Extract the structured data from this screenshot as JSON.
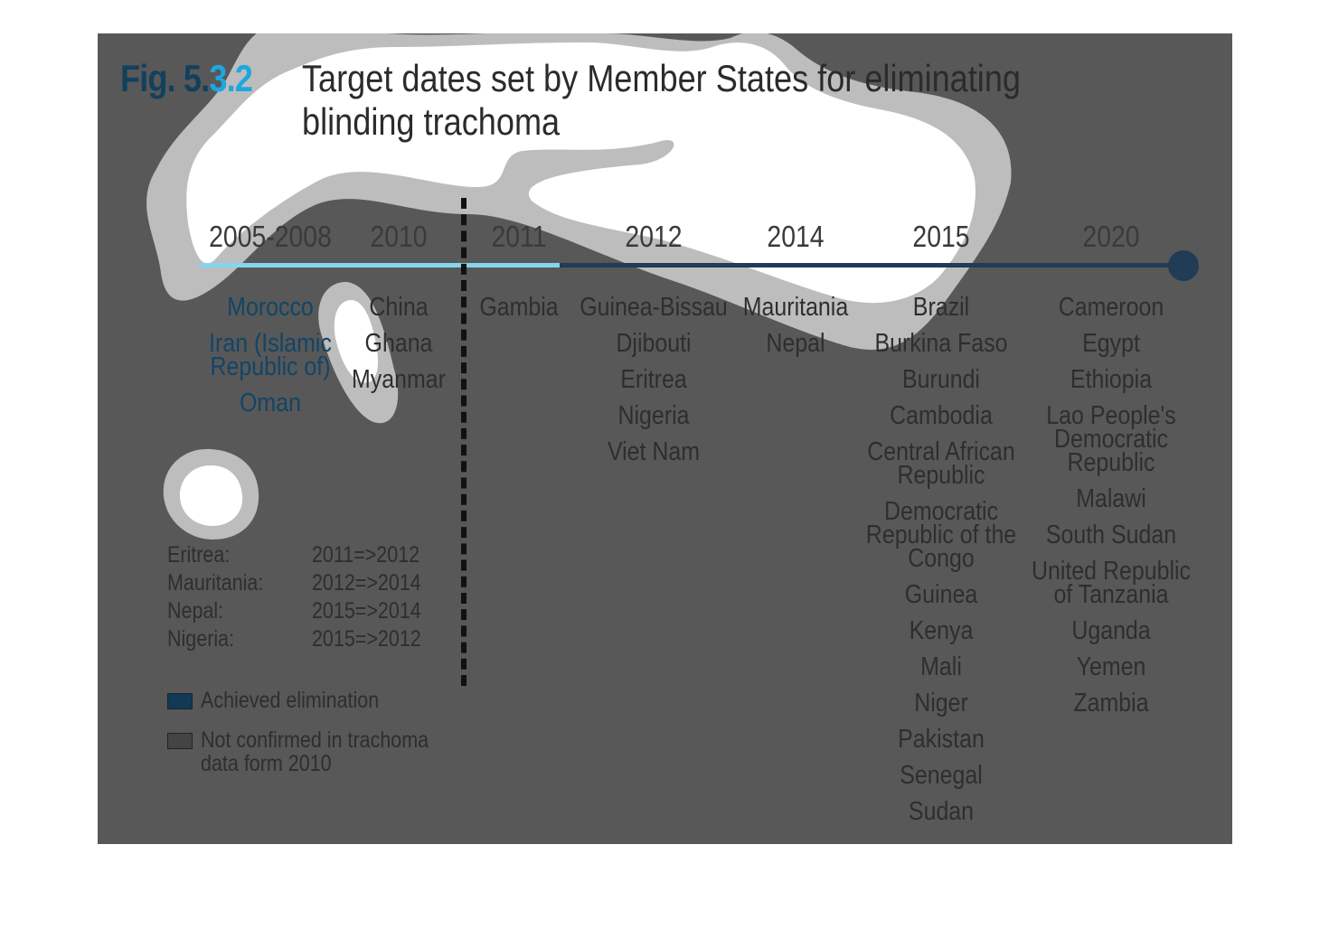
{
  "figure": {
    "number_prefix": "Fig. 5.",
    "number_suffix": "3.2",
    "title": "Target dates set by Member States for eliminating blinding trachoma"
  },
  "timeline": [
    {
      "year": "2005-2008",
      "countries": [
        {
          "name": "Morocco",
          "status": "achieved"
        },
        {
          "name": "Iran (Islamic Republic of)",
          "status": "achieved"
        },
        {
          "name": "Oman",
          "status": "achieved"
        }
      ]
    },
    {
      "year": "2010",
      "countries": [
        {
          "name": "China",
          "status": "not-confirmed"
        },
        {
          "name": "Ghana",
          "status": "not-confirmed"
        },
        {
          "name": "Myanmar",
          "status": "not-confirmed"
        }
      ]
    },
    {
      "year": "2011",
      "countries": [
        {
          "name": "Gambia"
        }
      ]
    },
    {
      "year": "2012",
      "countries": [
        {
          "name": "Guinea-Bissau"
        },
        {
          "name": "Djibouti"
        },
        {
          "name": "Eritrea"
        },
        {
          "name": "Nigeria"
        },
        {
          "name": "Viet Nam"
        }
      ]
    },
    {
      "year": "2014",
      "countries": [
        {
          "name": "Mauritania"
        },
        {
          "name": "Nepal"
        }
      ]
    },
    {
      "year": "2015",
      "countries": [
        {
          "name": "Brazil"
        },
        {
          "name": "Burkina Faso"
        },
        {
          "name": "Burundi"
        },
        {
          "name": "Cambodia"
        },
        {
          "name": "Central African Republic"
        },
        {
          "name": "Democratic Republic of the Congo"
        },
        {
          "name": "Guinea"
        },
        {
          "name": "Kenya"
        },
        {
          "name": "Mali"
        },
        {
          "name": "Niger"
        },
        {
          "name": "Pakistan"
        },
        {
          "name": "Senegal"
        },
        {
          "name": "Sudan"
        }
      ]
    },
    {
      "year": "2020",
      "countries": [
        {
          "name": "Cameroon"
        },
        {
          "name": "Egypt"
        },
        {
          "name": "Ethiopia"
        },
        {
          "name": "Lao People's Democratic Republic"
        },
        {
          "name": "Malawi"
        },
        {
          "name": "South Sudan"
        },
        {
          "name": "United Republic of Tanzania"
        },
        {
          "name": "Uganda"
        },
        {
          "name": "Yemen"
        },
        {
          "name": "Zambia"
        }
      ]
    }
  ],
  "date_changes": [
    {
      "country": "Eritrea:",
      "change": "2011=>2012"
    },
    {
      "country": "Mauritania:",
      "change": "2012=>2014"
    },
    {
      "country": "Nepal:",
      "change": "2015=>2014"
    },
    {
      "country": "Nigeria:",
      "change": "2015=>2012"
    }
  ],
  "legend": [
    {
      "label": "Achieved elimination",
      "color": "#103a55"
    },
    {
      "label": "Not confirmed in trachoma data form 2010",
      "color": "#444444"
    }
  ],
  "colors": {
    "panel_background": "#585858",
    "timeline_completed": "#84d6ee",
    "timeline_remaining": "#203c57",
    "achieved_text": "#124566",
    "figure_number_accent": "#1ea7df"
  }
}
